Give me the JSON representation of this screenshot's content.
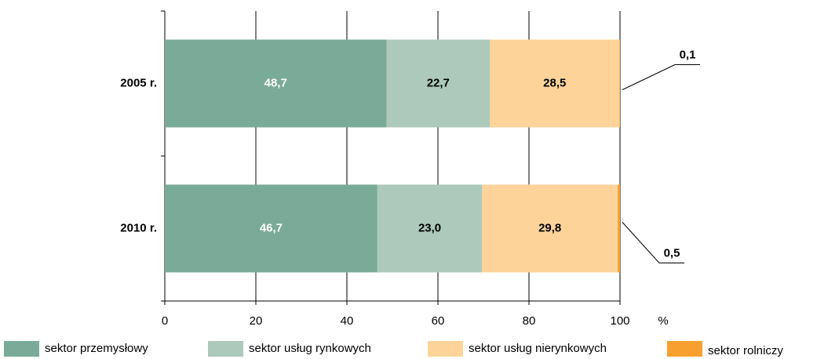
{
  "chart_data": {
    "type": "stacked-bar-horizontal",
    "categories": [
      "2005 r.",
      "2010 r."
    ],
    "series": [
      {
        "name": "sektor przemysłowy",
        "color": "#7aab98",
        "label_color": "#ffffff",
        "values": [
          48.7,
          46.7
        ],
        "value_labels": [
          "48,7",
          "46,7"
        ]
      },
      {
        "name": "sektor usług rynkowych",
        "color": "#adc9bc",
        "label_color": "#000000",
        "values": [
          22.7,
          23.0
        ],
        "value_labels": [
          "22,7",
          "23,0"
        ]
      },
      {
        "name": "sektor usług nierynkowych",
        "color": "#fdd39a",
        "label_color": "#000000",
        "values": [
          28.5,
          29.8
        ],
        "value_labels": [
          "28,5",
          "29,8"
        ]
      },
      {
        "name": "sektor rolniczy",
        "color": "#f7a030",
        "label_color": "#000000",
        "values": [
          0.1,
          0.5
        ],
        "value_labels": [
          "0,1",
          "0,5"
        ]
      }
    ],
    "x_label": "%",
    "xlim": [
      0,
      100
    ],
    "xticks": [
      0,
      20,
      40,
      60,
      80,
      100
    ],
    "grid": true,
    "legend": "bottom"
  }
}
